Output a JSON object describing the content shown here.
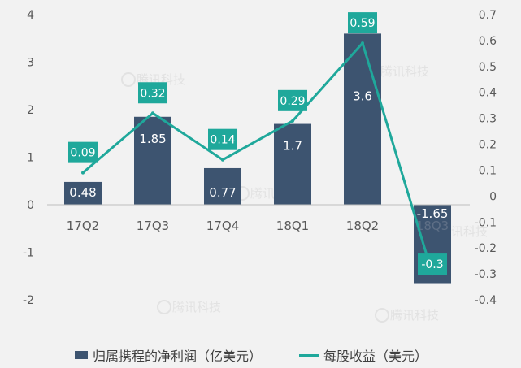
{
  "chart_data": {
    "type": "bar",
    "categories": [
      "17Q2",
      "17Q3",
      "17Q4",
      "18Q1",
      "18Q2",
      "18Q3"
    ],
    "series": [
      {
        "name": "归属携程的净利润（亿美元）",
        "kind": "bar",
        "axis": "left",
        "values": [
          0.48,
          1.85,
          0.77,
          1.7,
          3.6,
          -1.65
        ],
        "labels": [
          "0.48",
          "1.85",
          "0.77",
          "1.7",
          "3.6",
          "-1.65"
        ]
      },
      {
        "name": "每股收益（美元）",
        "kind": "line",
        "axis": "right",
        "values": [
          0.09,
          0.32,
          0.14,
          0.29,
          0.59,
          -0.3
        ],
        "labels": [
          "0.09",
          "0.32",
          "0.14",
          "0.29",
          "0.59",
          "-0.3"
        ]
      }
    ],
    "y_left": {
      "ylim": [
        -2,
        4
      ],
      "ticks": [
        "-2",
        "-1",
        "0",
        "1",
        "2",
        "3",
        "4"
      ]
    },
    "y_right": {
      "ylim": [
        -0.4,
        0.7
      ],
      "ticks": [
        "-0.4",
        "-0.3",
        "-0.2",
        "-0.1",
        "0",
        "0.1",
        "0.2",
        "0.3",
        "0.4",
        "0.5",
        "0.6",
        "0.7"
      ]
    },
    "watermark": "腾讯科技",
    "legend_position": "bottom",
    "grid": false
  },
  "colors": {
    "bar": "#3d5470",
    "line": "#1fa89b",
    "label_box": "#1fa89b",
    "text": "#595959"
  }
}
